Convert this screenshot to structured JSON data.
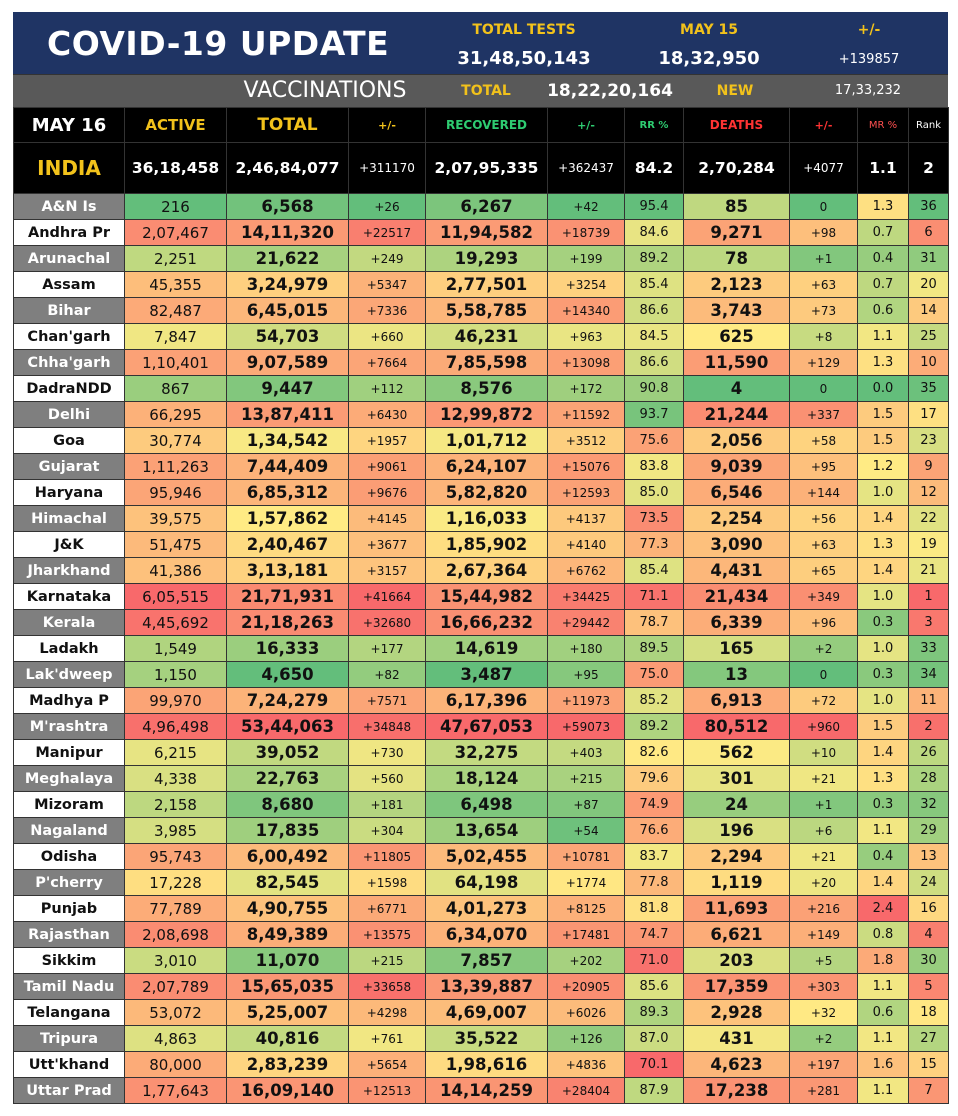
{
  "header": {
    "title": "COVID-19 UPDATE",
    "total_tests_label": "TOTAL TESTS",
    "total_tests": "31,48,50,143",
    "day_label": "MAY 15",
    "day_tests": "18,32,950",
    "change_label": "+/-",
    "change_value": "+139857"
  },
  "vaccinations": {
    "label": "VACCINATIONS",
    "total_label": "TOTAL",
    "total_value": "18,22,20,164",
    "new_label": "NEW",
    "new_value": "17,33,232"
  },
  "columns": [
    "MAY 16",
    "ACTIVE",
    "TOTAL",
    "+/-",
    "RECOVERED",
    "+/-",
    "RR %",
    "DEATHS",
    "+/-",
    "MR %",
    "Rank"
  ],
  "india": [
    "INDIA",
    "36,18,458",
    "2,46,84,077",
    "+311170",
    "2,07,95,335",
    "+362437",
    "84.2",
    "2,70,284",
    "+4077",
    "1.1",
    "2"
  ],
  "rows": [
    [
      "A&N Is",
      "216",
      "6,568",
      "+26",
      "6,267",
      "+42",
      "95.4",
      "85",
      "0",
      "1.3",
      "36"
    ],
    [
      "Andhra Pr",
      "2,07,467",
      "14,11,320",
      "+22517",
      "11,94,582",
      "+18739",
      "84.6",
      "9,271",
      "+98",
      "0.7",
      "6"
    ],
    [
      "Arunachal",
      "2,251",
      "21,622",
      "+249",
      "19,293",
      "+199",
      "89.2",
      "78",
      "+1",
      "0.4",
      "31"
    ],
    [
      "Assam",
      "45,355",
      "3,24,979",
      "+5347",
      "2,77,501",
      "+3254",
      "85.4",
      "2,123",
      "+63",
      "0.7",
      "20"
    ],
    [
      "Bihar",
      "82,487",
      "6,45,015",
      "+7336",
      "5,58,785",
      "+14340",
      "86.6",
      "3,743",
      "+73",
      "0.6",
      "14"
    ],
    [
      "Chan'garh",
      "7,847",
      "54,703",
      "+660",
      "46,231",
      "+963",
      "84.5",
      "625",
      "+8",
      "1.1",
      "25"
    ],
    [
      "Chha'garh",
      "1,10,401",
      "9,07,589",
      "+7664",
      "7,85,598",
      "+13098",
      "86.6",
      "11,590",
      "+129",
      "1.3",
      "10"
    ],
    [
      "DadraNDD",
      "867",
      "9,447",
      "+112",
      "8,576",
      "+172",
      "90.8",
      "4",
      "0",
      "0.0",
      "35"
    ],
    [
      "Delhi",
      "66,295",
      "13,87,411",
      "+6430",
      "12,99,872",
      "+11592",
      "93.7",
      "21,244",
      "+337",
      "1.5",
      "17"
    ],
    [
      "Goa",
      "30,774",
      "1,34,542",
      "+1957",
      "1,01,712",
      "+3512",
      "75.6",
      "2,056",
      "+58",
      "1.5",
      "23"
    ],
    [
      "Gujarat",
      "1,11,263",
      "7,44,409",
      "+9061",
      "6,24,107",
      "+15076",
      "83.8",
      "9,039",
      "+95",
      "1.2",
      "9"
    ],
    [
      "Haryana",
      "95,946",
      "6,85,312",
      "+9676",
      "5,82,820",
      "+12593",
      "85.0",
      "6,546",
      "+144",
      "1.0",
      "12"
    ],
    [
      "Himachal",
      "39,575",
      "1,57,862",
      "+4145",
      "1,16,033",
      "+4137",
      "73.5",
      "2,254",
      "+56",
      "1.4",
      "22"
    ],
    [
      "J&K",
      "51,475",
      "2,40,467",
      "+3677",
      "1,85,902",
      "+4140",
      "77.3",
      "3,090",
      "+63",
      "1.3",
      "19"
    ],
    [
      "Jharkhand",
      "41,386",
      "3,13,181",
      "+3157",
      "2,67,364",
      "+6762",
      "85.4",
      "4,431",
      "+65",
      "1.4",
      "21"
    ],
    [
      "Karnataka",
      "6,05,515",
      "21,71,931",
      "+41664",
      "15,44,982",
      "+34425",
      "71.1",
      "21,434",
      "+349",
      "1.0",
      "1"
    ],
    [
      "Kerala",
      "4,45,692",
      "21,18,263",
      "+32680",
      "16,66,232",
      "+29442",
      "78.7",
      "6,339",
      "+96",
      "0.3",
      "3"
    ],
    [
      "Ladakh",
      "1,549",
      "16,333",
      "+177",
      "14,619",
      "+180",
      "89.5",
      "165",
      "+2",
      "1.0",
      "33"
    ],
    [
      "Lak'dweep",
      "1,150",
      "4,650",
      "+82",
      "3,487",
      "+95",
      "75.0",
      "13",
      "0",
      "0.3",
      "34"
    ],
    [
      "Madhya P",
      "99,970",
      "7,24,279",
      "+7571",
      "6,17,396",
      "+11973",
      "85.2",
      "6,913",
      "+72",
      "1.0",
      "11"
    ],
    [
      "M'rashtra",
      "4,96,498",
      "53,44,063",
      "+34848",
      "47,67,053",
      "+59073",
      "89.2",
      "80,512",
      "+960",
      "1.5",
      "2"
    ],
    [
      "Manipur",
      "6,215",
      "39,052",
      "+730",
      "32,275",
      "+403",
      "82.6",
      "562",
      "+10",
      "1.4",
      "26"
    ],
    [
      "Meghalaya",
      "4,338",
      "22,763",
      "+560",
      "18,124",
      "+215",
      "79.6",
      "301",
      "+21",
      "1.3",
      "28"
    ],
    [
      "Mizoram",
      "2,158",
      "8,680",
      "+181",
      "6,498",
      "+87",
      "74.9",
      "24",
      "+1",
      "0.3",
      "32"
    ],
    [
      "Nagaland",
      "3,985",
      "17,835",
      "+304",
      "13,654",
      "+54",
      "76.6",
      "196",
      "+6",
      "1.1",
      "29"
    ],
    [
      "Odisha",
      "95,743",
      "6,00,492",
      "+11805",
      "5,02,455",
      "+10781",
      "83.7",
      "2,294",
      "+21",
      "0.4",
      "13"
    ],
    [
      "P'cherry",
      "17,228",
      "82,545",
      "+1598",
      "64,198",
      "+1774",
      "77.8",
      "1,119",
      "+20",
      "1.4",
      "24"
    ],
    [
      "Punjab",
      "77,789",
      "4,90,755",
      "+6771",
      "4,01,273",
      "+8125",
      "81.8",
      "11,693",
      "+216",
      "2.4",
      "16"
    ],
    [
      "Rajasthan",
      "2,08,698",
      "8,49,389",
      "+13575",
      "6,34,070",
      "+17481",
      "74.7",
      "6,621",
      "+149",
      "0.8",
      "4"
    ],
    [
      "Sikkim",
      "3,010",
      "11,070",
      "+215",
      "7,857",
      "+202",
      "71.0",
      "203",
      "+5",
      "1.8",
      "30"
    ],
    [
      "Tamil Nadu",
      "2,07,789",
      "15,65,035",
      "+33658",
      "13,39,887",
      "+20905",
      "85.6",
      "17,359",
      "+303",
      "1.1",
      "5"
    ],
    [
      "Telangana",
      "53,072",
      "5,25,007",
      "+4298",
      "4,69,007",
      "+6026",
      "89.3",
      "2,928",
      "+32",
      "0.6",
      "18"
    ],
    [
      "Tripura",
      "4,863",
      "40,816",
      "+761",
      "35,522",
      "+126",
      "87.0",
      "431",
      "+2",
      "1.1",
      "27"
    ],
    [
      "Utt'khand",
      "80,000",
      "2,83,239",
      "+5654",
      "1,98,616",
      "+4836",
      "70.1",
      "4,623",
      "+197",
      "1.6",
      "15"
    ],
    [
      "Uttar Prad",
      "1,77,643",
      "16,09,140",
      "+12513",
      "14,14,259",
      "+28404",
      "87.9",
      "17,238",
      "+281",
      "1.1",
      "7"
    ]
  ],
  "colors": {
    "banner": "#1f3464",
    "accent_gold": "#f2c21b",
    "recovered_green": "#2ecc71",
    "deaths_red": "#ff3333",
    "mr_red": "#ff5050",
    "scale_green": "#63be7b",
    "scale_yellow": "#ffeb84",
    "scale_red": "#f8696b"
  }
}
